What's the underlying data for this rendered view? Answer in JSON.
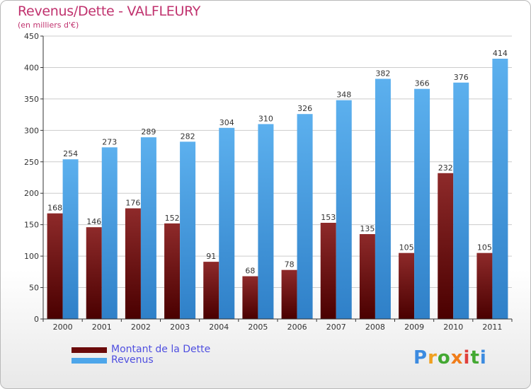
{
  "header": {
    "title": "Revenus/Dette - VALFLEURY",
    "subtitle": "(en milliers d'€)"
  },
  "colors": {
    "dette": "#6b0a0a",
    "revenus": "#4da6ea",
    "title": "#c0326e",
    "legend_text": "#4f4fe0",
    "grid": "#cccccc"
  },
  "legend": {
    "items": [
      {
        "label": "Montant de la Dette",
        "color": "#6b0a0a"
      },
      {
        "label": "Revenus",
        "color": "#4da6ea"
      }
    ]
  },
  "logo": {
    "letters": [
      "P",
      "r",
      "o",
      "x",
      "i",
      "t",
      "i"
    ],
    "icon": "proxiti-logo"
  },
  "chart_data": {
    "type": "bar",
    "title": "Revenus/Dette - VALFLEURY",
    "subtitle": "(en milliers d'€)",
    "categories": [
      "2000",
      "2001",
      "2002",
      "2003",
      "2004",
      "2005",
      "2006",
      "2007",
      "2008",
      "2009",
      "2010",
      "2011"
    ],
    "series": [
      {
        "name": "Montant de la Dette",
        "values": [
          168,
          146,
          176,
          152,
          91,
          68,
          78,
          153,
          135,
          105,
          232,
          105
        ]
      },
      {
        "name": "Revenus",
        "values": [
          254,
          273,
          289,
          282,
          304,
          310,
          326,
          348,
          382,
          366,
          376,
          414
        ]
      }
    ],
    "ylim": [
      0,
      450
    ],
    "yticks": [
      0,
      50,
      100,
      150,
      200,
      250,
      300,
      350,
      400,
      450
    ],
    "grid": true,
    "legend_position": "bottom-left"
  }
}
